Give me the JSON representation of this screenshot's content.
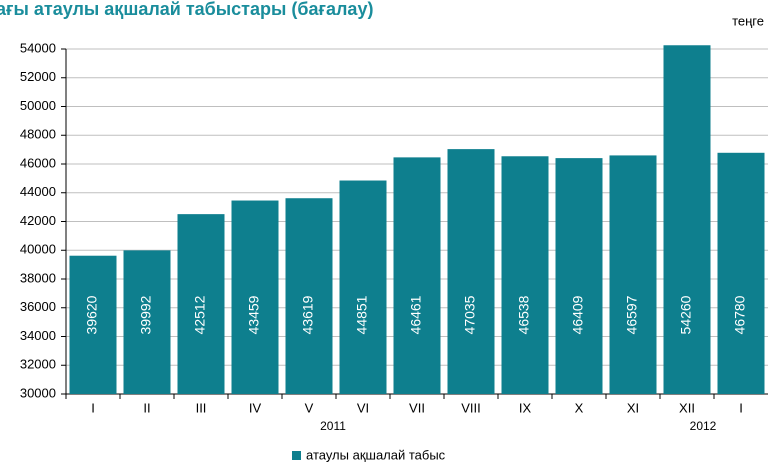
{
  "chart_data": {
    "type": "bar",
    "title": "ағы атаулы ақшалай табыстары (бағалау)",
    "unit_label": "теңге",
    "categories": [
      "I",
      "II",
      "III",
      "IV",
      "V",
      "VI",
      "VII",
      "VIII",
      "IX",
      "X",
      "XI",
      "XII",
      "I"
    ],
    "year_labels": [
      "2011",
      "2012"
    ],
    "series": [
      {
        "name": "атаулы ақшалай табыс",
        "color": "#0e7f8e",
        "values": [
          39620,
          39992,
          42512,
          43459,
          43619,
          44851,
          46461,
          47035,
          46538,
          46409,
          46597,
          54260,
          46780
        ]
      }
    ],
    "ylim": [
      30000,
      54000
    ],
    "yticks": [
      30000,
      32000,
      34000,
      36000,
      38000,
      40000,
      42000,
      44000,
      46000,
      48000,
      50000,
      52000,
      54000
    ],
    "grid": true,
    "legend": "bottom"
  }
}
